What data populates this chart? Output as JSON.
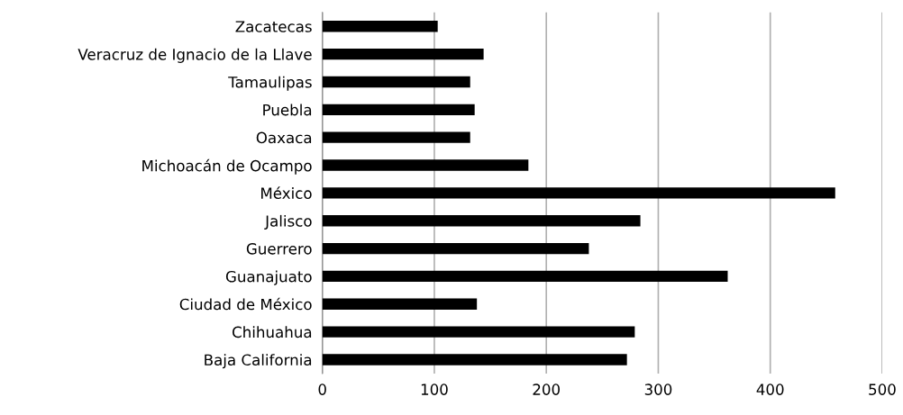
{
  "chart_data": {
    "type": "bar",
    "orientation": "horizontal",
    "categories": [
      "Zacatecas",
      "Veracruz de Ignacio de la Llave",
      "Tamaulipas",
      "Puebla",
      "Oaxaca",
      "Michoacán de Ocampo",
      "México",
      "Jalisco",
      "Guerrero",
      "Guanajuato",
      "Ciudad de México",
      "Chihuahua",
      "Baja California"
    ],
    "values": [
      103,
      144,
      132,
      136,
      132,
      184,
      458,
      284,
      238,
      362,
      138,
      279,
      272
    ],
    "color": "#000000",
    "xlim": [
      0,
      500
    ],
    "xticks": [
      0,
      100,
      200,
      300,
      400,
      500
    ],
    "grid": "x"
  }
}
